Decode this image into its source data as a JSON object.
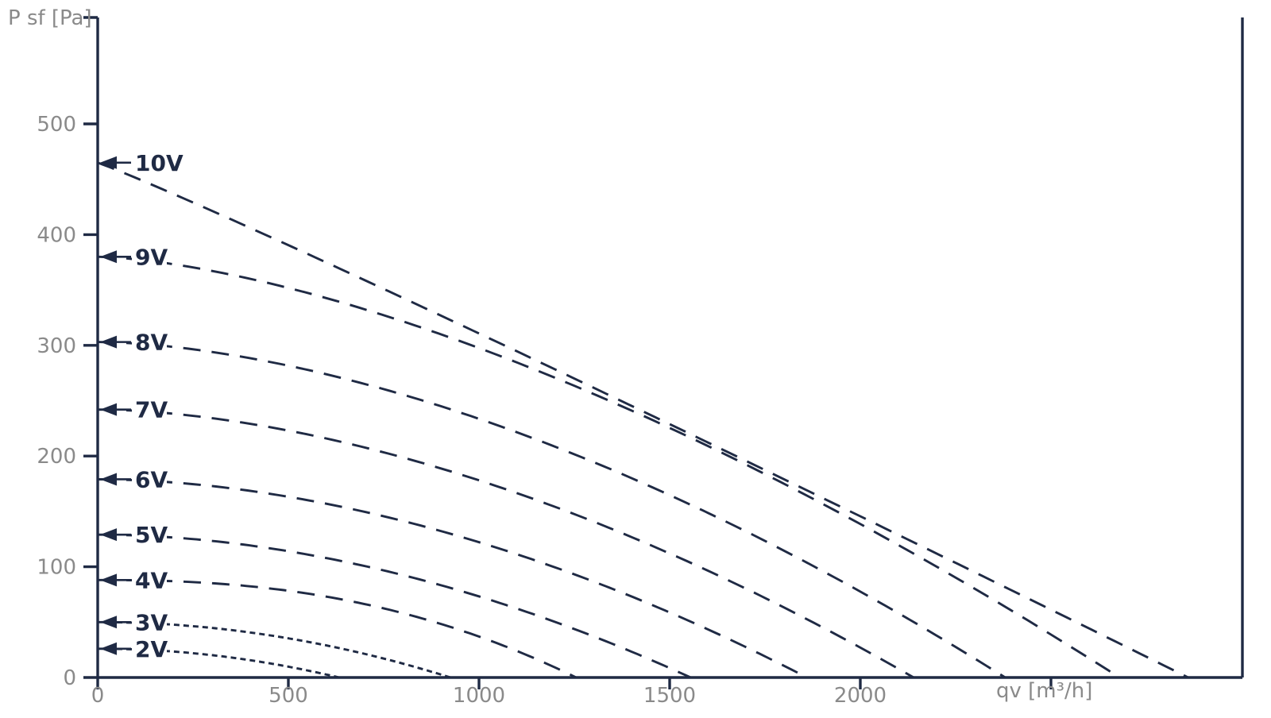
{
  "page": {
    "background": "#ffffff"
  },
  "colors": {
    "curve": "#1f2a44",
    "axis": "#1f2a44",
    "series_label_text": "#1f2a44",
    "tick_text": "#8a8a8a"
  },
  "chart_data": {
    "type": "line",
    "title": "",
    "xlabel": "qv [m³/h]",
    "ylabel": "P sf [Pa]",
    "xlim": [
      0,
      3000
    ],
    "ylim": [
      0,
      600
    ],
    "grid": false,
    "legend_position": "curve labels on y-axis with left-pointing arrows",
    "x_ticks_labeled": [
      0,
      500,
      1000,
      1500,
      2000
    ],
    "x_ticks_unlabeled": [
      2500
    ],
    "y_ticks": [
      0,
      100,
      200,
      300,
      400,
      500
    ],
    "series": [
      {
        "name": "10V",
        "line_style": "dashed",
        "p_max_Pa": 465,
        "q_max_m3h": 2860,
        "curve_exponent": 1.05,
        "points_q_p": [
          [
            0,
            465
          ],
          [
            500,
            391
          ],
          [
            1000,
            311
          ],
          [
            1500,
            229
          ],
          [
            2000,
            146
          ],
          [
            2500,
            61
          ],
          [
            2860,
            0
          ]
        ]
      },
      {
        "name": "9V",
        "line_style": "dashed",
        "p_max_Pa": 380,
        "q_max_m3h": 2680,
        "curve_exponent": 1.55,
        "points_q_p": [
          [
            0,
            380
          ],
          [
            500,
            352
          ],
          [
            1000,
            297
          ],
          [
            1500,
            225
          ],
          [
            2000,
            139
          ],
          [
            2500,
            39
          ],
          [
            2680,
            0
          ]
        ]
      },
      {
        "name": "8V",
        "line_style": "dashed",
        "p_max_Pa": 303,
        "q_max_m3h": 2380,
        "curve_exponent": 1.7,
        "points_q_p": [
          [
            0,
            303
          ],
          [
            500,
            282
          ],
          [
            1000,
            234
          ],
          [
            1500,
            165
          ],
          [
            2000,
            78
          ],
          [
            2380,
            0
          ]
        ]
      },
      {
        "name": "7V",
        "line_style": "dashed",
        "p_max_Pa": 242,
        "q_max_m3h": 2140,
        "curve_exponent": 1.75,
        "points_q_p": [
          [
            0,
            242
          ],
          [
            500,
            223
          ],
          [
            1000,
            178
          ],
          [
            1500,
            112
          ],
          [
            2000,
            27
          ],
          [
            2140,
            0
          ]
        ]
      },
      {
        "name": "6V",
        "line_style": "dashed",
        "p_max_Pa": 179,
        "q_max_m3h": 1860,
        "curve_exponent": 1.85,
        "points_q_p": [
          [
            0,
            179
          ],
          [
            500,
            163
          ],
          [
            1000,
            122
          ],
          [
            1500,
            59
          ],
          [
            1860,
            0
          ]
        ]
      },
      {
        "name": "5V",
        "line_style": "dashed",
        "p_max_Pa": 129,
        "q_max_m3h": 1555,
        "curve_exponent": 1.9,
        "points_q_p": [
          [
            0,
            129
          ],
          [
            500,
            114
          ],
          [
            1000,
            73
          ],
          [
            1500,
            9
          ],
          [
            1555,
            0
          ]
        ]
      },
      {
        "name": "4V",
        "line_style": "dashed",
        "p_max_Pa": 88,
        "q_max_m3h": 1255,
        "curve_exponent": 2.4,
        "points_q_p": [
          [
            0,
            88
          ],
          [
            500,
            78
          ],
          [
            750,
            62
          ],
          [
            1000,
            37
          ],
          [
            1255,
            0
          ]
        ]
      },
      {
        "name": "3V",
        "line_style": "dotted",
        "p_max_Pa": 50,
        "q_max_m3h": 925,
        "curve_exponent": 2.0,
        "points_q_p": [
          [
            0,
            50
          ],
          [
            250,
            46
          ],
          [
            500,
            35
          ],
          [
            750,
            17
          ],
          [
            925,
            0
          ]
        ]
      },
      {
        "name": "2V",
        "line_style": "dotted",
        "p_max_Pa": 26,
        "q_max_m3h": 633,
        "curve_exponent": 2.0,
        "points_q_p": [
          [
            0,
            26
          ],
          [
            200,
            23
          ],
          [
            400,
            16
          ],
          [
            633,
            0
          ]
        ]
      }
    ]
  }
}
